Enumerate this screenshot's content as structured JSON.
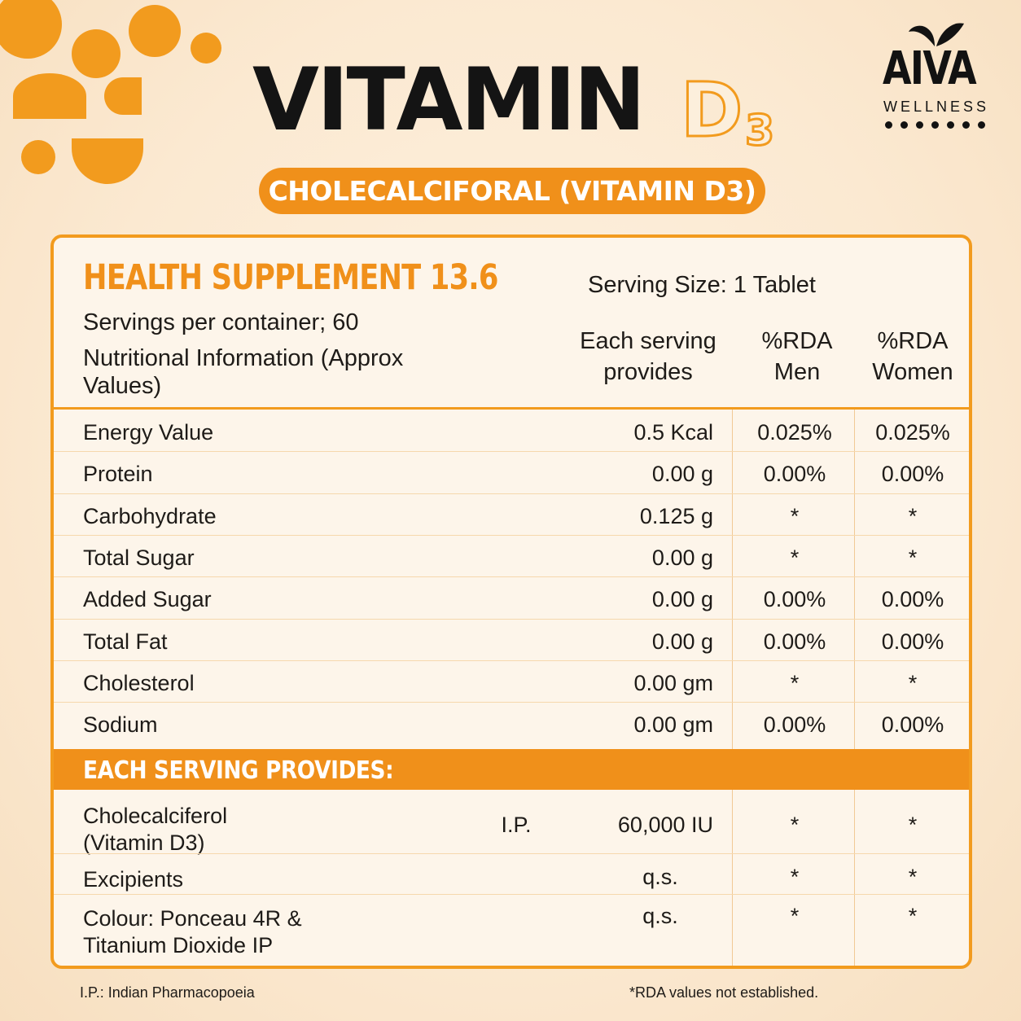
{
  "header": {
    "title": "VITAMIN",
    "title_accent_letter": "D",
    "title_accent_subscript": "3",
    "subtitle": "CHOLECALCIFORAL (VITAMIN D3)"
  },
  "brand": {
    "name": "AIVA",
    "tagline": "WELLNESS",
    "accent_color": "#f29b1e"
  },
  "panel": {
    "heading": "HEALTH SUPPLEMENT 13.6",
    "serving_size": "Serving Size: 1 Tablet",
    "servings_per_container": "Servings per container; 60",
    "nutritional_info": "Nutritional Information (Approx Values)",
    "columns": {
      "each_serving": "Each serving provides",
      "rda_men": "%RDA Men",
      "rda_women": "%RDA Women"
    },
    "nutrients": [
      {
        "name": "Energy Value",
        "amount": "0.5 Kcal",
        "rda_men": "0.025%",
        "rda_women": "0.025%"
      },
      {
        "name": "Protein",
        "amount": "0.00 g",
        "rda_men": "0.00%",
        "rda_women": "0.00%"
      },
      {
        "name": "Carbohydrate",
        "amount": "0.125 g",
        "rda_men": "*",
        "rda_women": "*"
      },
      {
        "name": "Total Sugar",
        "amount": "0.00 g",
        "rda_men": "*",
        "rda_women": "*"
      },
      {
        "name": "Added Sugar",
        "amount": "0.00 g",
        "rda_men": "0.00%",
        "rda_women": "0.00%"
      },
      {
        "name": "Total Fat",
        "amount": "0.00 g",
        "rda_men": "0.00%",
        "rda_women": "0.00%"
      },
      {
        "name": "Cholesterol",
        "amount": "0.00 gm",
        "rda_men": "*",
        "rda_women": "*"
      },
      {
        "name": "Sodium",
        "amount": "0.00 gm",
        "rda_men": "0.00%",
        "rda_women": "0.00%"
      }
    ],
    "section_band": "EACH SERVING PROVIDES:",
    "ingredients": [
      {
        "name": "Cholecalciferol (Vitamin D3)",
        "grade": "I.P.",
        "amount": "60,000 IU",
        "rda_men": "*",
        "rda_women": "*"
      },
      {
        "name": "Excipients",
        "grade": "",
        "amount": "q.s.",
        "rda_men": "*",
        "rda_women": "*"
      },
      {
        "name": "Colour: Ponceau 4R & Titanium Dioxide IP",
        "grade": "",
        "amount": "q.s.",
        "rda_men": "*",
        "rda_women": "*"
      }
    ]
  },
  "footer": {
    "left_note": "I.P.: Indian Pharmacopoeia",
    "right_note": "*RDA values not established."
  }
}
